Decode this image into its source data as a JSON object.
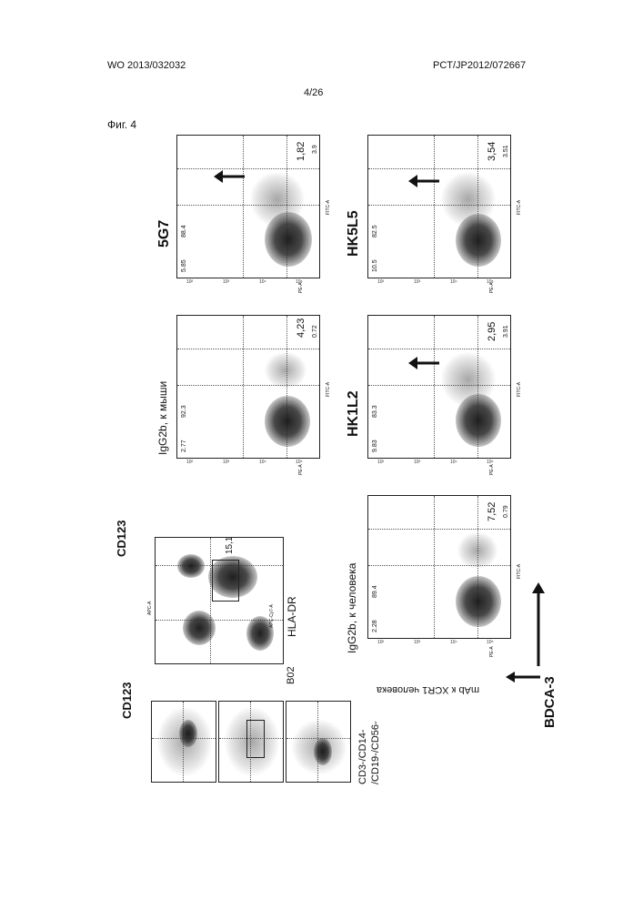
{
  "header": {
    "publication_number": "WO 2013/032032",
    "application_number": "PCT/JP2012/072667",
    "page": "4/26"
  },
  "figure": {
    "label": "Фиг. 4",
    "small_plots": {
      "axis_label": "CD123",
      "population_label": "CD3-/CD14-\n/CD19-/CD56-"
    },
    "gate_plot": {
      "y_axis_label": "CD123",
      "y_axis_tick": "APC-A",
      "x_axis_label": "HLA-DR",
      "x_axis_tick": "APC-Cy7-A",
      "gate_value": "15,1",
      "sample_label": "B02"
    },
    "bottom_axis_label": "BDCA-3",
    "bottom_rotated_label": "mAb к XCR1 человека",
    "panels": [
      {
        "title": "5G7",
        "q_ul": "3.9",
        "q_ur": "1,82",
        "q_ll": "5.85",
        "q_lr": "88.4",
        "x_axis": "FITC-A",
        "y_axis": "PE-A",
        "arrow": "downward-arrow"
      },
      {
        "title": "IgG2b, к мыши",
        "q_ul": "0.72",
        "q_ur": "4,23",
        "q_ll": "2.77",
        "q_lr": "92.3",
        "x_axis": "FITC-A",
        "y_axis": "PE-A",
        "arrow": ""
      },
      {
        "title": "HK5L5",
        "q_ul": "3.51",
        "q_ur": "3,54",
        "q_ll": "10.5",
        "q_lr": "82.5",
        "x_axis": "FITC-A",
        "y_axis": "PE-A",
        "arrow": "downward-arrow"
      },
      {
        "title": "HK1L2",
        "q_ul": "3.91",
        "q_ur": "2,95",
        "q_ll": "9.83",
        "q_lr": "83.3",
        "x_axis": "FITC-A",
        "y_axis": "PE-A",
        "arrow": "downward-arrow"
      },
      {
        "title": "IgG2b, к человека",
        "q_ul": "0.79",
        "q_ur": "7,52",
        "q_ll": "2.28",
        "q_lr": "89.4",
        "x_axis": "FITC-A",
        "y_axis": "PE-A",
        "arrow": ""
      }
    ],
    "tick_labels": [
      "10²",
      "10³",
      "10⁴",
      "10⁵"
    ]
  }
}
